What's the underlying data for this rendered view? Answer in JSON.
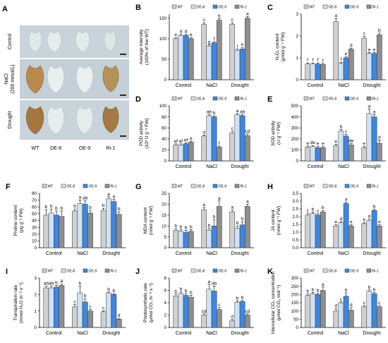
{
  "figure": {
    "panel_a": {
      "letter": "A",
      "rows": [
        "Control",
        "NaCl\n(200 mmol/L)",
        "Drought"
      ],
      "columns": [
        "WT",
        "OE-8",
        "OE-9",
        "Ri-1"
      ]
    },
    "legend_labels": [
      "WT",
      "OE-8",
      "OE-9",
      "Ri-1"
    ],
    "colors": {
      "WT": "#d0d0d0",
      "OE-8": "#cfe2f6",
      "OE-9": "#3f86e0",
      "Ri-1": "#8e8e8e"
    }
  },
  "chart_data": [
    {
      "panel": "B",
      "type": "bar",
      "categories": [
        "Control",
        "NaCl",
        "Drought"
      ],
      "ylabel_lines": [
        "Average intensity",
        "(100% of the WT)"
      ],
      "ylim": [
        0,
        160
      ],
      "yticks": [
        0,
        50,
        100,
        150
      ],
      "series": [
        {
          "name": "WT",
          "values": [
            100,
            135,
            135
          ],
          "errors": [
            3,
            4,
            4
          ],
          "letters": [
            "e",
            "c",
            "c"
          ]
        },
        {
          "name": "OE-8",
          "values": [
            108,
            82,
            72
          ],
          "errors": [
            3,
            3,
            3
          ],
          "letters": [
            "d",
            "g",
            "i"
          ]
        },
        {
          "name": "OE-9",
          "values": [
            108,
            90,
            75
          ],
          "errors": [
            3,
            3,
            3
          ],
          "letters": [
            "d",
            "f",
            "h"
          ]
        },
        {
          "name": "Ri-1",
          "values": [
            100,
            145,
            150
          ],
          "errors": [
            3,
            4,
            4
          ],
          "letters": [
            "e",
            "b",
            "a"
          ]
        }
      ]
    },
    {
      "panel": "C",
      "type": "bar",
      "categories": [
        "Control",
        "NaCl",
        "Drought"
      ],
      "ylabel_lines": [
        "H₂O₂ content",
        "(μmol g⁻¹ FW)"
      ],
      "ylim": [
        0,
        3
      ],
      "yticks": [
        0,
        1,
        2,
        3
      ],
      "series": [
        {
          "name": "WT",
          "values": [
            0.72,
            2.65,
            1.9
          ],
          "errors": [
            0.05,
            0.15,
            0.08
          ],
          "letters": [
            "f",
            "a",
            "c"
          ]
        },
        {
          "name": "OE-8",
          "values": [
            0.72,
            0.75,
            1.2
          ],
          "errors": [
            0.05,
            0.05,
            0.05
          ],
          "letters": [
            "f",
            "f",
            "e"
          ]
        },
        {
          "name": "OE-9",
          "values": [
            0.72,
            1.0,
            1.2
          ],
          "errors": [
            0.05,
            0.05,
            0.05
          ],
          "letters": [
            "f",
            "e",
            "e"
          ]
        },
        {
          "name": "Ri-1",
          "values": [
            0.7,
            1.4,
            2.05
          ],
          "errors": [
            0.05,
            0.05,
            0.08
          ],
          "letters": [
            "f",
            "d",
            "b"
          ]
        }
      ]
    },
    {
      "panel": "D",
      "type": "bar",
      "categories": [
        "Control",
        "NaCl",
        "Drought"
      ],
      "ylabel_lines": [
        "POD activity",
        "(10³ U g⁻¹ FW)"
      ],
      "ylim": [
        0,
        100
      ],
      "yticks": [
        0,
        20,
        40,
        60,
        80,
        100
      ],
      "series": [
        {
          "name": "WT",
          "values": [
            29,
            45,
            51
          ],
          "errors": [
            2,
            2,
            3
          ],
          "letters": [
            "ef",
            "d",
            "c"
          ]
        },
        {
          "name": "OE-8",
          "values": [
            29,
            82,
            84
          ],
          "errors": [
            2,
            2,
            2
          ],
          "letters": [
            "ef",
            "ab",
            "a"
          ]
        },
        {
          "name": "OE-9",
          "values": [
            31,
            80,
            82
          ],
          "errors": [
            2,
            2,
            2
          ],
          "letters": [
            "ef",
            "b",
            "ab"
          ]
        },
        {
          "name": "Ri-1",
          "values": [
            34,
            25,
            46
          ],
          "errors": [
            2,
            2,
            3
          ],
          "letters": [
            "e",
            "f",
            "cd"
          ]
        }
      ]
    },
    {
      "panel": "E",
      "type": "bar",
      "categories": [
        "Control",
        "NaCl",
        "Drought"
      ],
      "ylabel_lines": [
        "SOD activity",
        "(U g⁻¹ FW)"
      ],
      "ylim": [
        0,
        500
      ],
      "yticks": [
        0,
        100,
        200,
        300,
        400,
        500
      ],
      "series": [
        {
          "name": "WT",
          "values": [
            125,
            140,
            120
          ],
          "errors": [
            10,
            12,
            10
          ],
          "letters": [
            "e",
            "e",
            "e"
          ]
        },
        {
          "name": "OE-8",
          "values": [
            130,
            270,
            430
          ],
          "errors": [
            10,
            15,
            40
          ],
          "letters": [
            "de",
            "b",
            "a"
          ]
        },
        {
          "name": "OE-9",
          "values": [
            120,
            225,
            400
          ],
          "errors": [
            10,
            15,
            20
          ],
          "letters": [
            "e",
            "c",
            "a"
          ]
        },
        {
          "name": "Ri-1",
          "values": [
            120,
            145,
            160
          ],
          "errors": [
            10,
            12,
            30
          ],
          "letters": [
            "e",
            "de",
            "d"
          ]
        }
      ]
    },
    {
      "panel": "F",
      "type": "bar",
      "categories": [
        "Control",
        "NaCl",
        "Drought"
      ],
      "ylabel_lines": [
        "Proline content",
        "(μg g⁻¹ FW)"
      ],
      "ylim": [
        0,
        80
      ],
      "yticks": [
        0,
        10,
        20,
        30,
        40,
        50,
        60,
        70,
        80
      ],
      "series": [
        {
          "name": "WT",
          "values": [
            48,
            54,
            55
          ],
          "errors": [
            8,
            3,
            3
          ],
          "letters": [
            "b",
            "b",
            "b"
          ]
        },
        {
          "name": "OE-8",
          "values": [
            51,
            65,
            72
          ],
          "errors": [
            6,
            5,
            3
          ],
          "letters": [
            "b",
            "a",
            "a"
          ]
        },
        {
          "name": "OE-9",
          "values": [
            48,
            64,
            68
          ],
          "errors": [
            6,
            5,
            3
          ],
          "letters": [
            "b",
            "ab",
            "a"
          ]
        },
        {
          "name": "Ri-1",
          "values": [
            46,
            51,
            49
          ],
          "errors": [
            8,
            4,
            4
          ],
          "letters": [
            "b",
            "b",
            "b"
          ]
        }
      ]
    },
    {
      "panel": "G",
      "type": "bar",
      "categories": [
        "Control",
        "NaCl",
        "Drought"
      ],
      "ylabel_lines": [
        "MDA content",
        "(nmol g⁻¹ FW)"
      ],
      "ylim": [
        0,
        25
      ],
      "yticks": [
        0,
        5,
        10,
        15,
        20,
        25
      ],
      "series": [
        {
          "name": "WT",
          "values": [
            8,
            17.5,
            16.5
          ],
          "errors": [
            0.8,
            1.0,
            0.8
          ],
          "letters": [
            "b",
            "a",
            "a"
          ]
        },
        {
          "name": "OE-8",
          "values": [
            7.5,
            8,
            9
          ],
          "errors": [
            0.8,
            1.0,
            1.0
          ],
          "letters": [
            "b",
            "b",
            "b"
          ]
        },
        {
          "name": "OE-9",
          "values": [
            7,
            10,
            10.5
          ],
          "errors": [
            1.0,
            3.0,
            1.5
          ],
          "letters": [
            "b",
            "b",
            "b"
          ]
        },
        {
          "name": "Ri-1",
          "values": [
            7.5,
            19,
            19
          ],
          "errors": [
            0.8,
            2.5,
            1.0
          ],
          "letters": [
            "b",
            "a",
            "a"
          ]
        }
      ]
    },
    {
      "panel": "H",
      "type": "bar",
      "categories": [
        "Control",
        "NaCl",
        "Drought"
      ],
      "ylabel_lines": [
        "JA content",
        "(nmol g⁻¹ FW)"
      ],
      "ylim": [
        0,
        3.5
      ],
      "yticks": [
        0,
        0.5,
        1.0,
        1.5,
        2.0,
        2.5,
        3.0,
        3.5
      ],
      "series": [
        {
          "name": "WT",
          "values": [
            2.1,
            1.4,
            1.55
          ],
          "errors": [
            0.1,
            0.08,
            0.08
          ],
          "letters": [
            "c",
            "e",
            "e"
          ]
        },
        {
          "name": "OE-8",
          "values": [
            2.2,
            1.6,
            1.75
          ],
          "errors": [
            0.1,
            0.08,
            0.08
          ],
          "letters": [
            "b",
            "d",
            "d"
          ]
        },
        {
          "name": "OE-9",
          "values": [
            2.1,
            2.85,
            2.4
          ],
          "errors": [
            0.08,
            0.08,
            0.08
          ],
          "letters": [
            "c",
            "a",
            "b"
          ]
        },
        {
          "name": "Ri-1",
          "values": [
            2.3,
            1.4,
            1.4
          ],
          "errors": [
            0.1,
            0.08,
            0.08
          ],
          "letters": [
            "b",
            "e",
            "e"
          ]
        }
      ]
    },
    {
      "panel": "I",
      "type": "bar",
      "categories": [
        "Control",
        "NaCl",
        "Drought"
      ],
      "ylabel_lines": [
        "Transpiration rate",
        "(mmol H₂O m⁻² s⁻¹)"
      ],
      "ylim": [
        0,
        3
      ],
      "yticks": [
        0,
        1,
        2,
        3
      ],
      "series": [
        {
          "name": "WT",
          "values": [
            2.4,
            1.25,
            0.95
          ],
          "errors": [
            0.1,
            0.15,
            0.05
          ],
          "letters": [
            "ab",
            "c",
            "c"
          ]
        },
        {
          "name": "OE-8",
          "values": [
            2.4,
            2.1,
            2.1
          ],
          "errors": [
            0.1,
            0.4,
            0.05
          ],
          "letters": [
            "ab",
            "b",
            "b"
          ]
        },
        {
          "name": "OE-9",
          "values": [
            2.45,
            1.55,
            2.0
          ],
          "errors": [
            0.1,
            0.2,
            0.05
          ],
          "letters": [
            "b",
            "b",
            "b"
          ]
        },
        {
          "name": "Ri-1",
          "values": [
            2.55,
            1.0,
            0.5
          ],
          "errors": [
            0.1,
            0.1,
            0.05
          ],
          "letters": [
            "a",
            "c",
            "d"
          ]
        }
      ]
    },
    {
      "panel": "J",
      "type": "bar",
      "categories": [
        "Control",
        "NaCl",
        "Drought"
      ],
      "ylabel_lines": [
        "Photosynthetic rate",
        "(μmol CO₂ m⁻² s⁻¹)"
      ],
      "ylim": [
        0,
        8
      ],
      "yticks": [
        0,
        2,
        4,
        6,
        8
      ],
      "series": [
        {
          "name": "WT",
          "values": [
            5.1,
            2.0,
            1.1
          ],
          "errors": [
            0.3,
            0.2,
            0.2
          ],
          "letters": [
            "b",
            "cd",
            "d"
          ]
        },
        {
          "name": "OE-8",
          "values": [
            5.5,
            6.2,
            4.1
          ],
          "errors": [
            0.3,
            0.8,
            0.2
          ],
          "letters": [
            "b",
            "a",
            "b"
          ]
        },
        {
          "name": "OE-9",
          "values": [
            5.2,
            5.9,
            4.2
          ],
          "errors": [
            0.3,
            0.8,
            0.2
          ],
          "letters": [
            "b",
            "ab",
            "b"
          ]
        },
        {
          "name": "Ri-1",
          "values": [
            4.9,
            2.9,
            2.0
          ],
          "errors": [
            0.3,
            0.3,
            0.2
          ],
          "letters": [
            "b",
            "c",
            "cd"
          ]
        }
      ]
    },
    {
      "panel": "K",
      "type": "bar",
      "categories": [
        "Control",
        "NaCl",
        "Drought"
      ],
      "ylabel_lines": [
        "Intercellular CO₂ concentration",
        "(μmol CO₂ mol⁻¹)"
      ],
      "ylim": [
        0,
        300
      ],
      "yticks": [
        0,
        50,
        100,
        150,
        200,
        250,
        300
      ],
      "series": [
        {
          "name": "WT",
          "values": [
            195,
            100,
            125
          ],
          "errors": [
            8,
            15,
            8
          ],
          "letters": [
            "b",
            "d",
            "c"
          ]
        },
        {
          "name": "OE-8",
          "values": [
            205,
            150,
            220
          ],
          "errors": [
            8,
            5,
            8
          ],
          "letters": [
            "b",
            "c",
            "b"
          ]
        },
        {
          "name": "OE-9",
          "values": [
            200,
            190,
            205
          ],
          "errors": [
            8,
            20,
            8
          ],
          "letters": [
            "b",
            "b",
            "b"
          ]
        },
        {
          "name": "Ri-1",
          "values": [
            225,
            105,
            125
          ],
          "errors": [
            20,
            15,
            8
          ],
          "letters": [
            "a",
            "d",
            "c"
          ]
        }
      ]
    }
  ]
}
